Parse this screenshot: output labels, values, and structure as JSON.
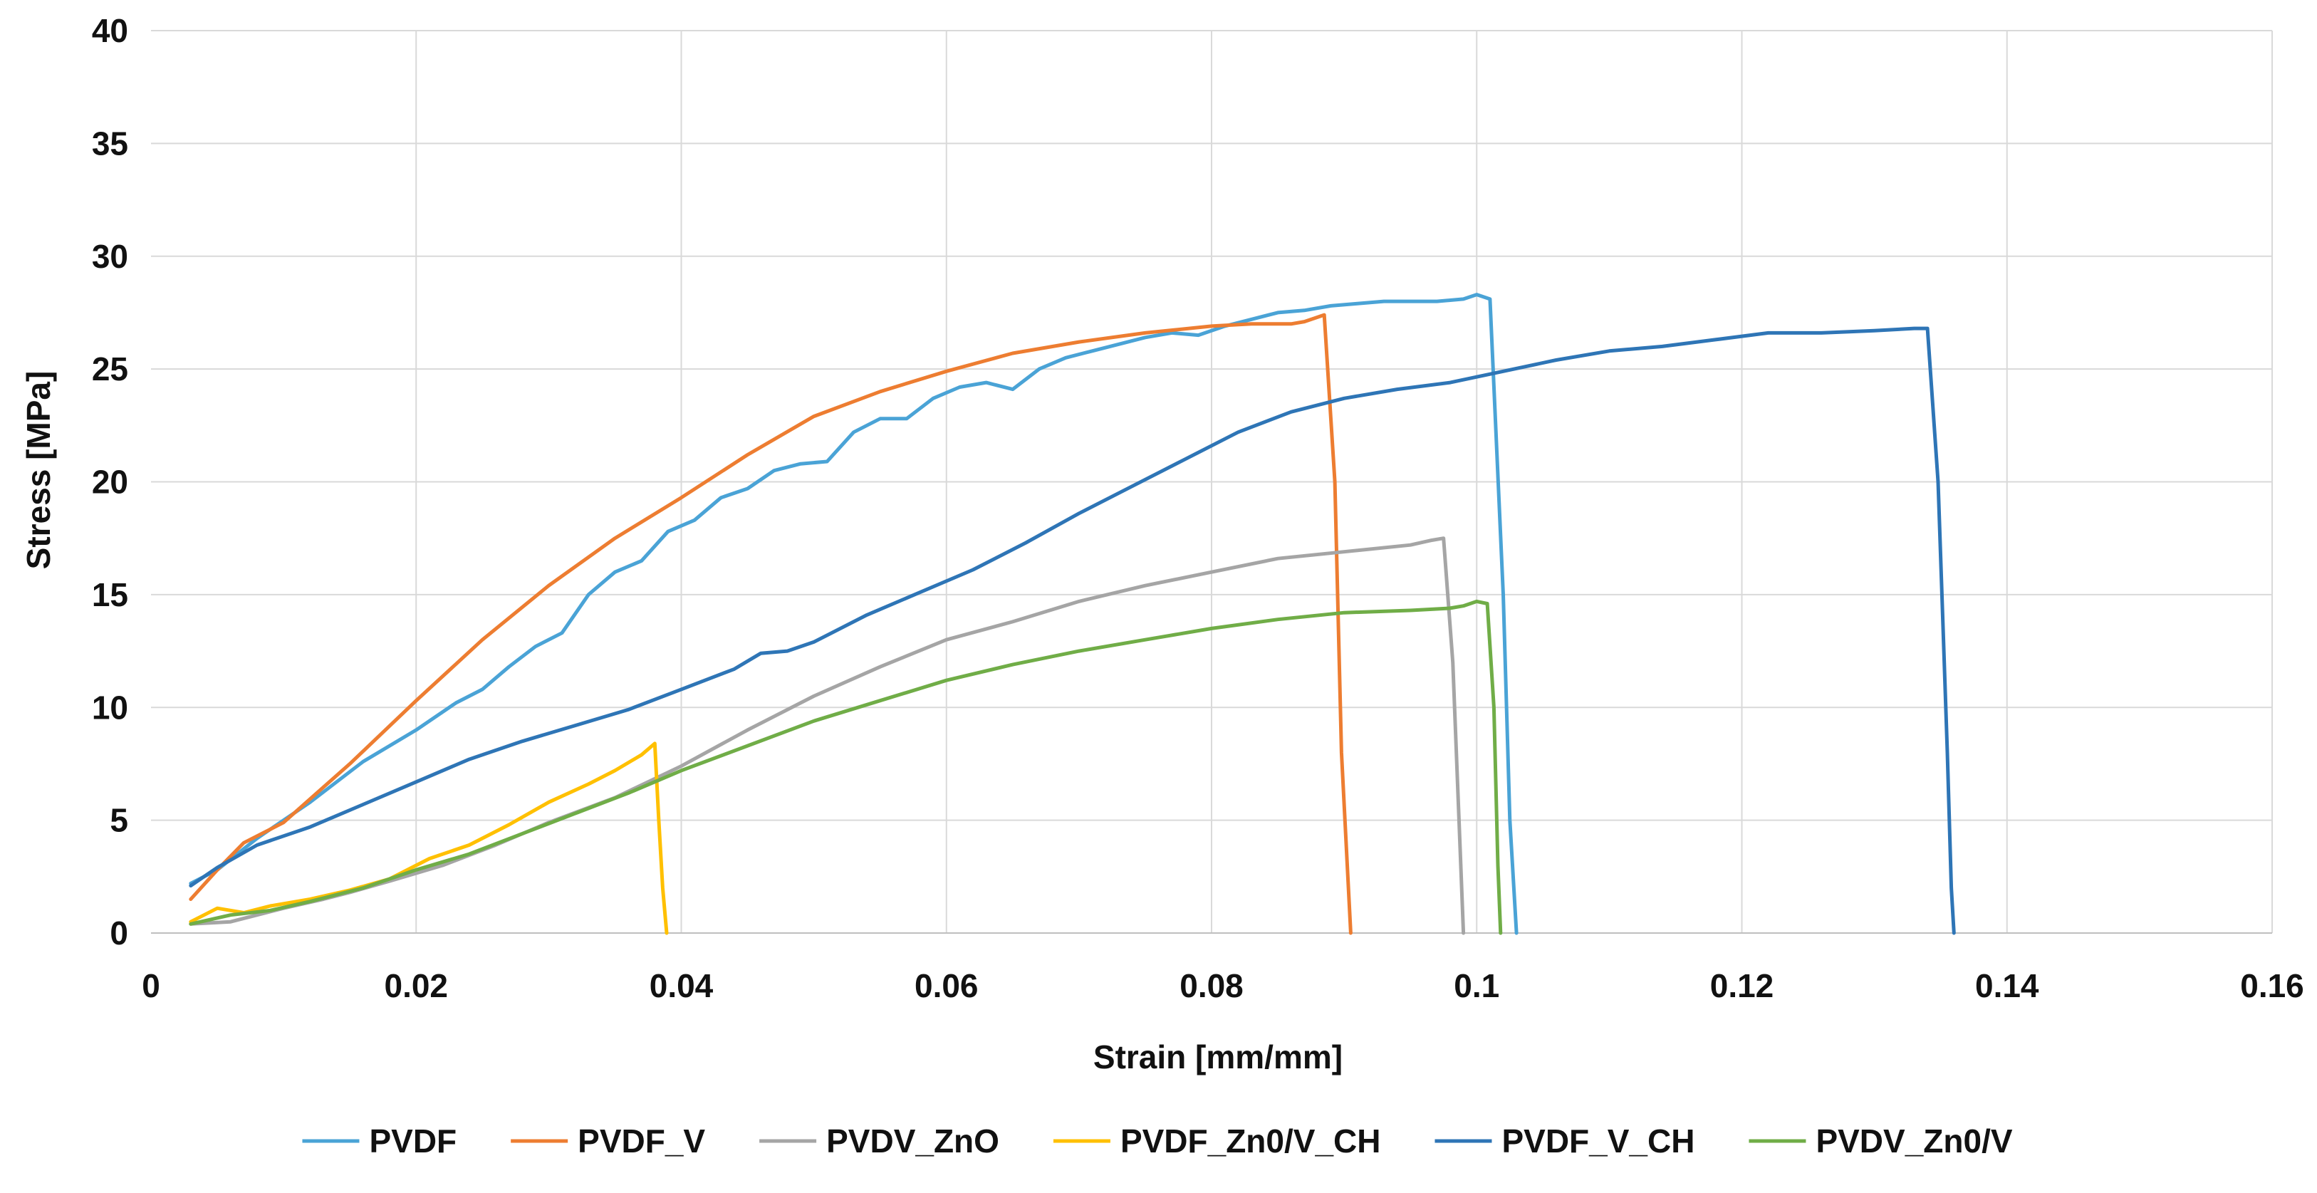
{
  "chart_data": {
    "type": "line",
    "title": "",
    "xlabel": "Strain [mm/mm]",
    "ylabel": "Stress [MPa]",
    "xlim": [
      0,
      0.16
    ],
    "ylim": [
      0,
      40
    ],
    "xticks": [
      0,
      0.02,
      0.04,
      0.06,
      0.08,
      0.1,
      0.12,
      0.14,
      0.16
    ],
    "xtick_labels": [
      "0",
      "0.02",
      "0.04",
      "0.06",
      "0.08",
      "0.1",
      "0.12",
      "0.14",
      "0.16"
    ],
    "yticks": [
      0,
      5,
      10,
      15,
      20,
      25,
      30,
      35,
      40
    ],
    "ytick_labels": [
      "0",
      "5",
      "10",
      "15",
      "20",
      "25",
      "30",
      "35",
      "40"
    ],
    "grid": true,
    "legend_position": "bottom",
    "series": [
      {
        "name": "PVDF",
        "color": "#4aa3d6",
        "x": [
          0.003,
          0.005,
          0.008,
          0.012,
          0.016,
          0.02,
          0.023,
          0.025,
          0.027,
          0.029,
          0.031,
          0.033,
          0.035,
          0.037,
          0.039,
          0.041,
          0.043,
          0.045,
          0.047,
          0.049,
          0.051,
          0.053,
          0.055,
          0.057,
          0.059,
          0.061,
          0.063,
          0.065,
          0.067,
          0.069,
          0.071,
          0.073,
          0.075,
          0.077,
          0.079,
          0.081,
          0.083,
          0.085,
          0.087,
          0.089,
          0.091,
          0.093,
          0.095,
          0.097,
          0.099,
          0.1,
          0.101,
          0.102,
          0.1025,
          0.103
        ],
        "y": [
          2.2,
          2.8,
          4.2,
          5.8,
          7.6,
          9.0,
          10.2,
          10.8,
          11.8,
          12.7,
          13.3,
          15.0,
          16.0,
          16.5,
          17.8,
          18.3,
          19.3,
          19.7,
          20.5,
          20.8,
          20.9,
          22.2,
          22.8,
          22.8,
          23.7,
          24.2,
          24.4,
          24.1,
          25.0,
          25.5,
          25.8,
          26.1,
          26.4,
          26.6,
          26.5,
          26.9,
          27.2,
          27.5,
          27.6,
          27.8,
          27.9,
          28.0,
          28.0,
          28.0,
          28.1,
          28.3,
          28.1,
          15.0,
          5.0,
          0.0
        ]
      },
      {
        "name": "PVDF_V",
        "color": "#ed7d31",
        "x": [
          0.003,
          0.005,
          0.007,
          0.01,
          0.015,
          0.02,
          0.025,
          0.03,
          0.035,
          0.04,
          0.045,
          0.05,
          0.055,
          0.06,
          0.065,
          0.07,
          0.075,
          0.08,
          0.083,
          0.086,
          0.087,
          0.0885,
          0.0893,
          0.0898,
          0.0905
        ],
        "y": [
          1.5,
          2.8,
          4.0,
          4.9,
          7.5,
          10.3,
          13.0,
          15.4,
          17.5,
          19.3,
          21.2,
          22.9,
          24.0,
          24.9,
          25.7,
          26.2,
          26.6,
          26.9,
          27.0,
          27.0,
          27.1,
          27.4,
          20.0,
          8.0,
          0.0
        ]
      },
      {
        "name": "PVDV_ZnO",
        "color": "#a5a5a5",
        "x": [
          0.003,
          0.006,
          0.008,
          0.01,
          0.013,
          0.015,
          0.018,
          0.022,
          0.026,
          0.03,
          0.035,
          0.04,
          0.045,
          0.05,
          0.055,
          0.06,
          0.065,
          0.07,
          0.075,
          0.08,
          0.085,
          0.09,
          0.095,
          0.0965,
          0.0975,
          0.0982,
          0.0988,
          0.099
        ],
        "y": [
          0.4,
          0.5,
          0.8,
          1.1,
          1.5,
          1.8,
          2.3,
          3.0,
          3.9,
          4.9,
          6.0,
          7.4,
          9.0,
          10.5,
          11.8,
          13.0,
          13.8,
          14.7,
          15.4,
          16.0,
          16.6,
          16.9,
          17.2,
          17.4,
          17.5,
          12.0,
          3.0,
          0.0
        ]
      },
      {
        "name": "PVDF_Zn0/V_CH",
        "color": "#ffc000",
        "x": [
          0.003,
          0.005,
          0.006,
          0.007,
          0.009,
          0.012,
          0.015,
          0.018,
          0.021,
          0.024,
          0.027,
          0.03,
          0.033,
          0.035,
          0.037,
          0.038,
          0.0383,
          0.0386,
          0.0389
        ],
        "y": [
          0.5,
          1.1,
          1.0,
          0.9,
          1.2,
          1.5,
          1.9,
          2.4,
          3.3,
          3.9,
          4.8,
          5.8,
          6.6,
          7.2,
          7.9,
          8.4,
          5.0,
          2.0,
          0.0
        ]
      },
      {
        "name": "PVDF_V_CH",
        "color": "#2e75b6",
        "x": [
          0.003,
          0.005,
          0.008,
          0.012,
          0.016,
          0.02,
          0.024,
          0.028,
          0.032,
          0.036,
          0.04,
          0.044,
          0.046,
          0.048,
          0.05,
          0.054,
          0.058,
          0.062,
          0.066,
          0.07,
          0.074,
          0.078,
          0.082,
          0.086,
          0.09,
          0.094,
          0.098,
          0.102,
          0.106,
          0.11,
          0.114,
          0.118,
          0.122,
          0.126,
          0.13,
          0.133,
          0.134,
          0.1348,
          0.1355,
          0.1358,
          0.136
        ],
        "y": [
          2.1,
          2.9,
          3.9,
          4.7,
          5.7,
          6.7,
          7.7,
          8.5,
          9.2,
          9.9,
          10.8,
          11.7,
          12.4,
          12.5,
          12.9,
          14.1,
          15.1,
          16.1,
          17.3,
          18.6,
          19.8,
          21.0,
          22.2,
          23.1,
          23.7,
          24.1,
          24.4,
          24.9,
          25.4,
          25.8,
          26.0,
          26.3,
          26.6,
          26.6,
          26.7,
          26.8,
          26.8,
          20.0,
          8.0,
          2.0,
          0.0
        ]
      },
      {
        "name": "PVDV_Zn0/V",
        "color": "#70ad47",
        "x": [
          0.003,
          0.006,
          0.009,
          0.012,
          0.016,
          0.02,
          0.024,
          0.028,
          0.032,
          0.036,
          0.04,
          0.045,
          0.05,
          0.055,
          0.06,
          0.065,
          0.07,
          0.075,
          0.08,
          0.085,
          0.09,
          0.095,
          0.098,
          0.099,
          0.1,
          0.1008,
          0.1013,
          0.1016,
          0.1018
        ],
        "y": [
          0.4,
          0.8,
          1.0,
          1.4,
          2.0,
          2.8,
          3.5,
          4.4,
          5.3,
          6.2,
          7.2,
          8.3,
          9.4,
          10.3,
          11.2,
          11.9,
          12.5,
          13.0,
          13.5,
          13.9,
          14.2,
          14.3,
          14.4,
          14.5,
          14.7,
          14.6,
          10.0,
          3.0,
          0.0
        ]
      }
    ]
  }
}
